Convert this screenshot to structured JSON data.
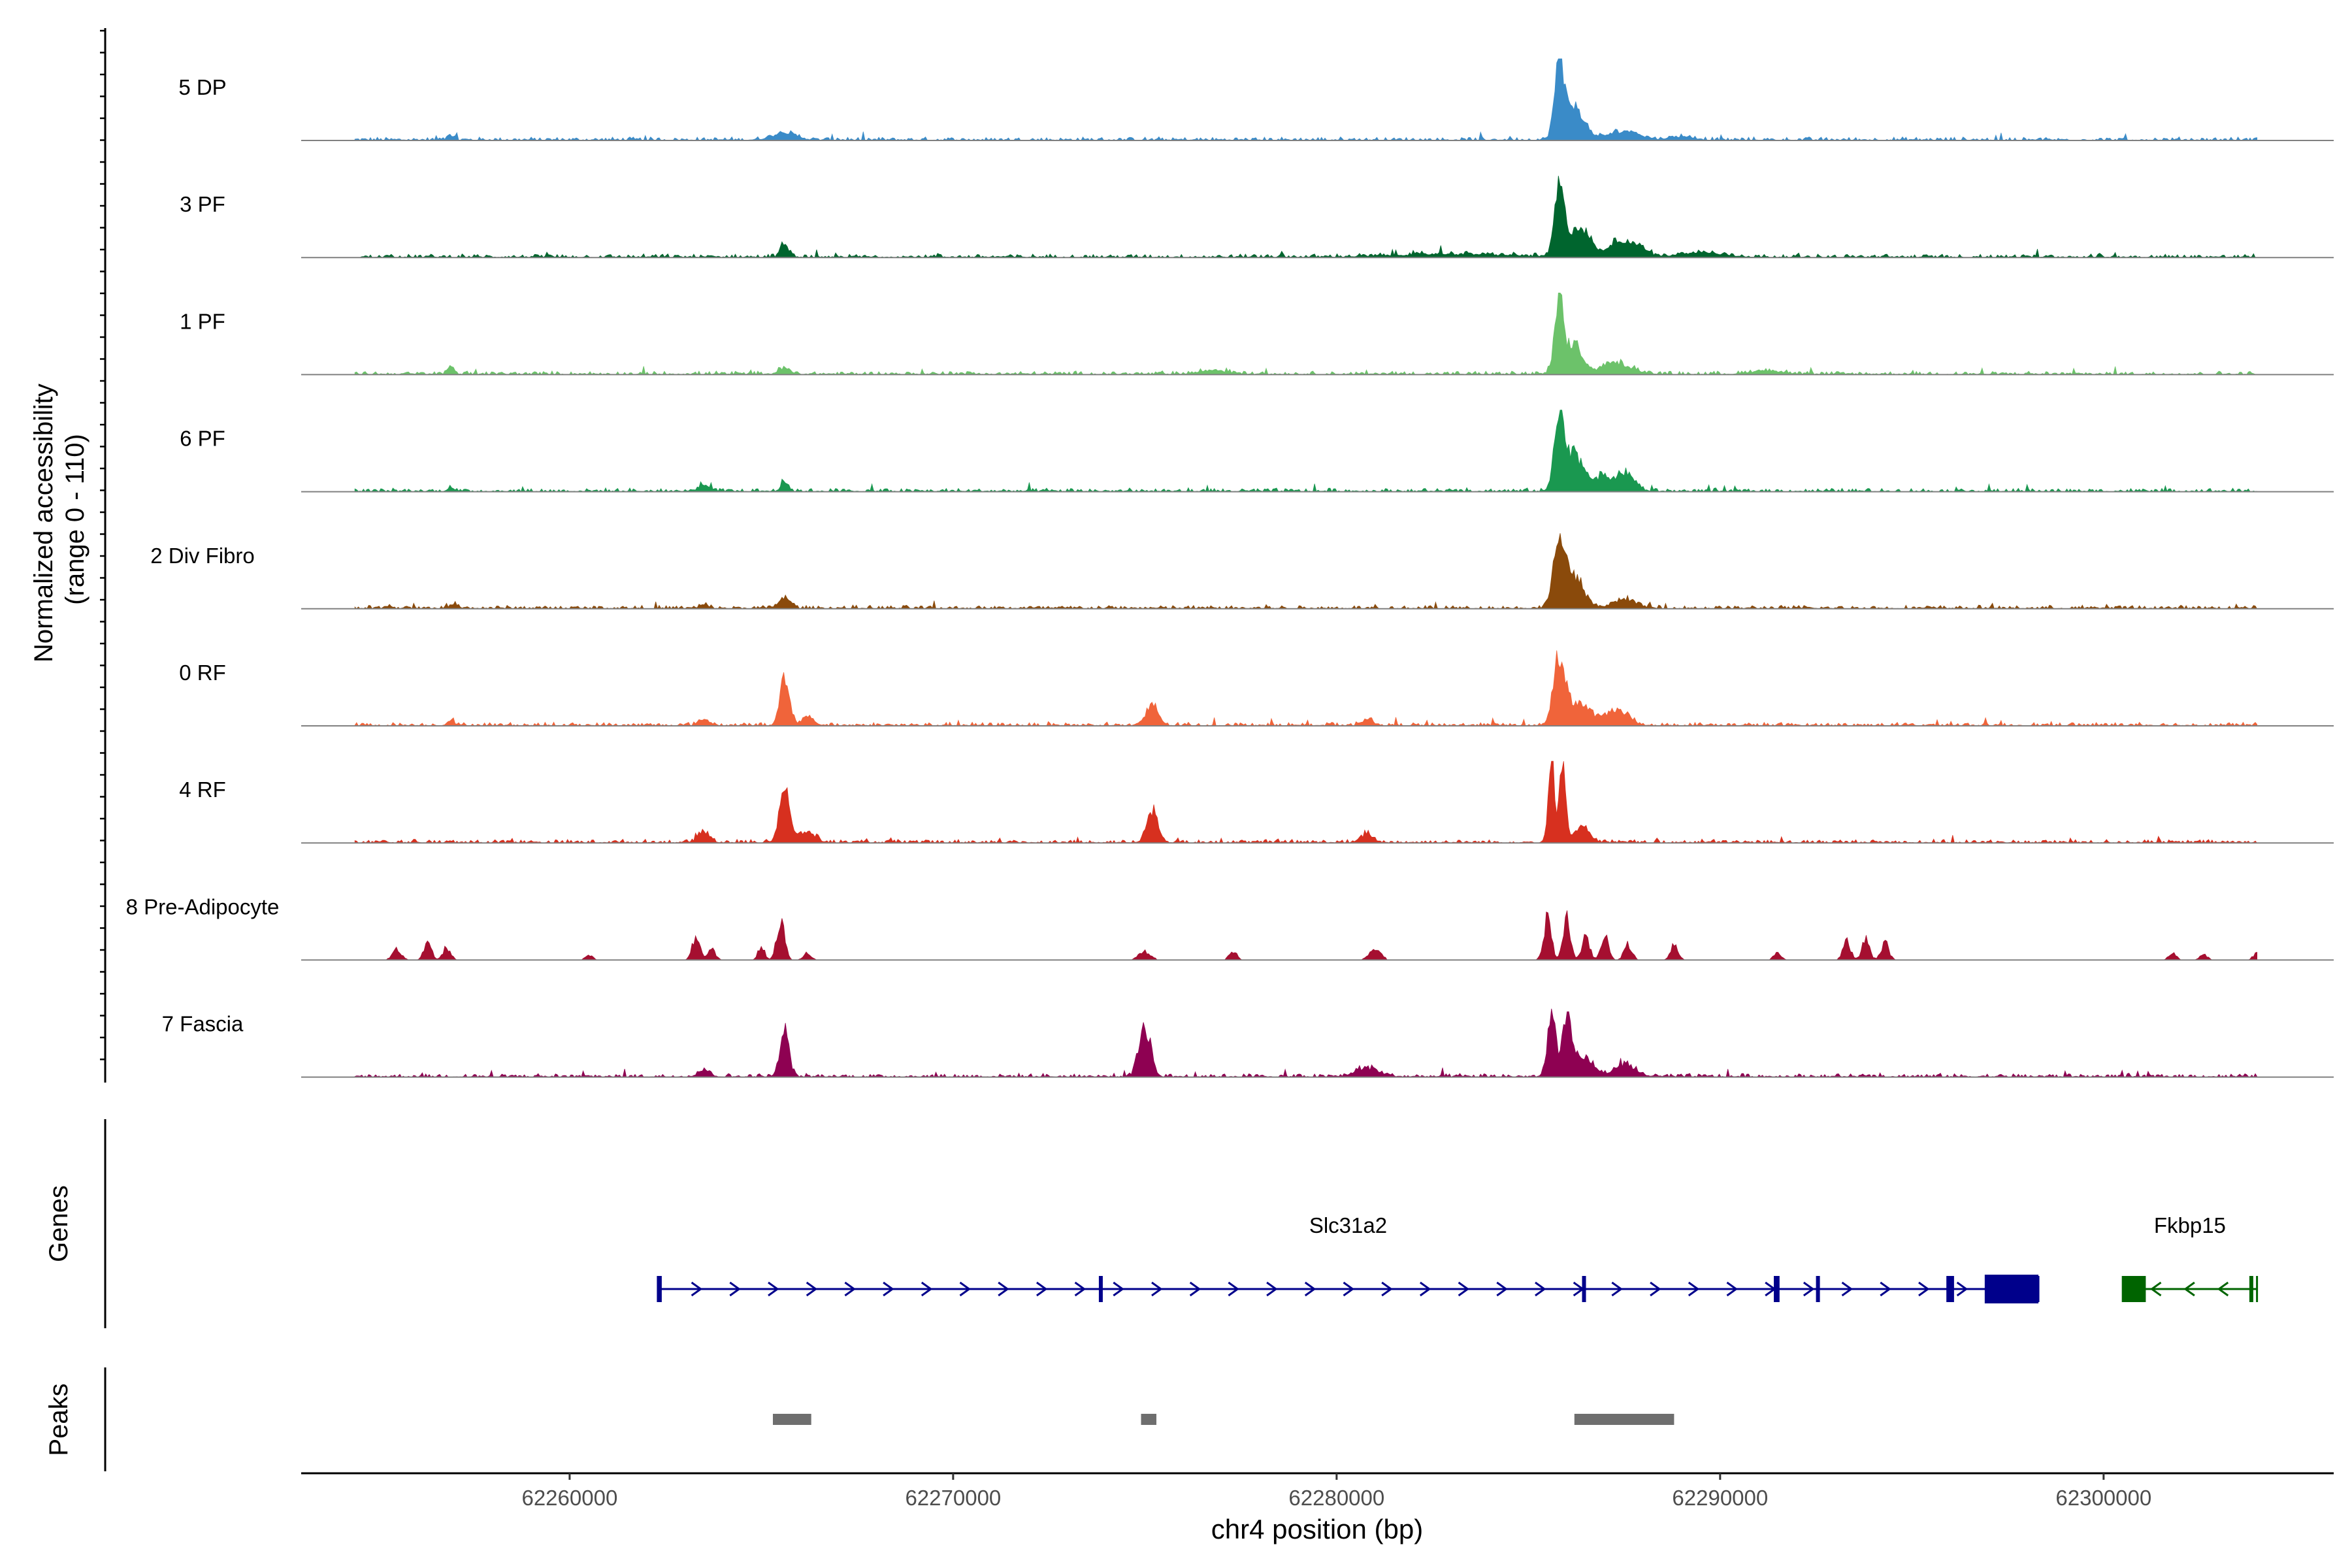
{
  "chart_data": {
    "type": "area",
    "title": "",
    "ylabel_lines": [
      "Normalized accessibility",
      "(range 0 - 110)"
    ],
    "xlabel": "chr4 position (bp)",
    "xlim": [
      62253000,
      62306000
    ],
    "ylim": [
      0,
      110
    ],
    "x_ticks": [
      {
        "value": 62260000,
        "label": "62260000"
      },
      {
        "value": 62270000,
        "label": "62270000"
      },
      {
        "value": 62280000,
        "label": "62280000"
      },
      {
        "value": 62290000,
        "label": "62290000"
      },
      {
        "value": 62300000,
        "label": "62300000"
      }
    ],
    "tracks": [
      {
        "name": "5 DP",
        "color": "#3a8bc8",
        "base": 1.5,
        "noise": 0.18,
        "sparse": false,
        "peaks": [
          [
            62265600,
            300,
            10
          ],
          [
            62285800,
            120,
            95
          ],
          [
            62286200,
            250,
            45
          ],
          [
            62287500,
            400,
            12
          ],
          [
            62289000,
            300,
            5
          ],
          [
            62256900,
            90,
            6
          ]
        ]
      },
      {
        "name": "3 PF",
        "color": "#00652e",
        "base": 1.5,
        "noise": 0.22,
        "sparse": false,
        "peaks": [
          [
            62265600,
            100,
            18
          ],
          [
            62285800,
            120,
            85
          ],
          [
            62286300,
            300,
            40
          ],
          [
            62287300,
            200,
            20
          ],
          [
            62287800,
            250,
            18
          ],
          [
            62289500,
            600,
            6
          ],
          [
            62283000,
            1500,
            4
          ]
        ]
      },
      {
        "name": "1 PF",
        "color": "#6cc26a",
        "base": 1.5,
        "noise": 0.22,
        "sparse": false,
        "peaks": [
          [
            62285800,
            120,
            95
          ],
          [
            62286200,
            200,
            40
          ],
          [
            62287300,
            400,
            15
          ],
          [
            62256900,
            80,
            12
          ],
          [
            62265600,
            150,
            8
          ],
          [
            62276800,
            400,
            5
          ],
          [
            62291200,
            400,
            5
          ]
        ]
      },
      {
        "name": "6 PF",
        "color": "#1a9850",
        "base": 1.5,
        "noise": 0.22,
        "sparse": false,
        "peaks": [
          [
            62285800,
            120,
            95
          ],
          [
            62286200,
            250,
            50
          ],
          [
            62287500,
            250,
            25
          ],
          [
            62286900,
            200,
            18
          ],
          [
            62265600,
            100,
            12
          ],
          [
            62263500,
            150,
            8
          ],
          [
            62256900,
            80,
            6
          ]
        ]
      },
      {
        "name": "2 Div Fibro",
        "color": "#8a4a0b",
        "base": 1.5,
        "noise": 0.2,
        "sparse": false,
        "peaks": [
          [
            62285800,
            150,
            85
          ],
          [
            62286200,
            250,
            40
          ],
          [
            62287500,
            300,
            12
          ],
          [
            62265600,
            150,
            15
          ],
          [
            62257000,
            100,
            6
          ],
          [
            62263500,
            100,
            5
          ]
        ]
      },
      {
        "name": "0 RF",
        "color": "#f0643a",
        "base": 1.5,
        "noise": 0.2,
        "sparse": false,
        "peaks": [
          [
            62265600,
            120,
            60
          ],
          [
            62266200,
            150,
            12
          ],
          [
            62275200,
            150,
            28
          ],
          [
            62285800,
            150,
            85
          ],
          [
            62286300,
            300,
            30
          ],
          [
            62287300,
            300,
            20
          ],
          [
            62256900,
            80,
            8
          ],
          [
            62263500,
            150,
            8
          ],
          [
            62280800,
            150,
            8
          ]
        ]
      },
      {
        "name": "4 RF",
        "color": "#d7301f",
        "base": 1.5,
        "noise": 0.2,
        "sparse": false,
        "peaks": [
          [
            62265600,
            130,
            75
          ],
          [
            62266200,
            200,
            15
          ],
          [
            62275200,
            150,
            40
          ],
          [
            62285600,
            80,
            110
          ],
          [
            62285900,
            80,
            108
          ],
          [
            62286400,
            200,
            20
          ],
          [
            62263500,
            150,
            15
          ],
          [
            62280800,
            150,
            12
          ]
        ]
      },
      {
        "name": "8 Pre-Adipocyte",
        "color": "#a50f30",
        "base": 0,
        "noise": 0,
        "sparse": true,
        "peaks": [
          [
            62255500,
            120,
            18
          ],
          [
            62256300,
            100,
            28
          ],
          [
            62256800,
            100,
            22
          ],
          [
            62260500,
            100,
            10
          ],
          [
            62263300,
            100,
            40
          ],
          [
            62263700,
            100,
            20
          ],
          [
            62265000,
            80,
            25
          ],
          [
            62265500,
            100,
            75
          ],
          [
            62266200,
            100,
            12
          ],
          [
            62275000,
            150,
            15
          ],
          [
            62277300,
            100,
            15
          ],
          [
            62281000,
            150,
            20
          ],
          [
            62285500,
            100,
            70
          ],
          [
            62286000,
            100,
            70
          ],
          [
            62286500,
            100,
            38
          ],
          [
            62287000,
            100,
            45
          ],
          [
            62287600,
            100,
            28
          ],
          [
            62288800,
            100,
            28
          ],
          [
            62291500,
            100,
            12
          ],
          [
            62293300,
            100,
            32
          ],
          [
            62293800,
            100,
            35
          ],
          [
            62294300,
            100,
            30
          ],
          [
            62301800,
            100,
            12
          ],
          [
            62302600,
            100,
            10
          ],
          [
            62304000,
            100,
            12
          ]
        ]
      },
      {
        "name": "7 Fascia",
        "color": "#8e0152",
        "base": 1.5,
        "noise": 0.25,
        "sparse": false,
        "peaks": [
          [
            62265600,
            120,
            62
          ],
          [
            62275000,
            150,
            70
          ],
          [
            62285600,
            100,
            80
          ],
          [
            62286000,
            150,
            70
          ],
          [
            62286500,
            200,
            25
          ],
          [
            62287500,
            300,
            15
          ],
          [
            62280800,
            300,
            12
          ],
          [
            62263500,
            150,
            10
          ]
        ]
      }
    ],
    "genes_label": "Genes",
    "genes": [
      {
        "name": "Slc31a2",
        "color": "#00008b",
        "strand": "+",
        "start": 62262300,
        "end": 62298300,
        "exons": [
          [
            62262300,
            62262380
          ],
          [
            62273800,
            62273840
          ],
          [
            62286400,
            62286500
          ],
          [
            62291400,
            62291550
          ],
          [
            62292500,
            62292560
          ],
          [
            62295900,
            62296100
          ],
          [
            62296900,
            62298300
          ]
        ]
      },
      {
        "name": "Fkbp15",
        "color": "#006400",
        "strand": "-",
        "start": 62300500,
        "end": 62304000,
        "exons": [
          [
            62300500,
            62301100
          ],
          [
            62303800,
            62303880
          ]
        ]
      }
    ],
    "peaks_label": "Peaks",
    "peak_regions": [
      [
        62265300,
        62266300
      ],
      [
        62274900,
        62275300
      ],
      [
        62286200,
        62288800
      ]
    ]
  }
}
